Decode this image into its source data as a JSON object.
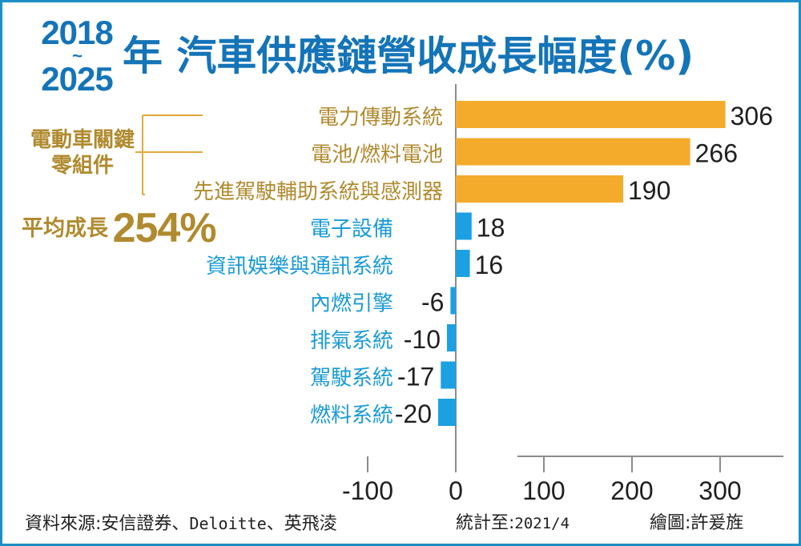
{
  "title": {
    "year_start": "2018",
    "year_sep": "~",
    "year_end": "2025",
    "main": "年 汽車供應鏈營收成長幅度(%)"
  },
  "group": {
    "label": "電動車關鍵零組件",
    "color": "#b08a2e"
  },
  "average": {
    "label": "平均成長",
    "value": "254%"
  },
  "chart_data": {
    "type": "bar",
    "orientation": "horizontal",
    "categories": [
      "電力傳動系統",
      "電池/燃料電池",
      "先進駕駛輔助系統與感測器",
      "電子設備",
      "資訊娛樂與通訊系統",
      "內燃引擎",
      "排氣系統",
      "駕駛系統",
      "燃料系統"
    ],
    "values": [
      306,
      266,
      190,
      18,
      16,
      -6,
      -10,
      -17,
      -20
    ],
    "value_labels": [
      "306",
      "266",
      "190",
      "18",
      "16",
      "-6",
      "-10",
      "-17",
      "-20"
    ],
    "highlight": [
      true,
      true,
      true,
      false,
      false,
      false,
      false,
      false,
      false
    ],
    "xlim": [
      -150,
      385
    ],
    "xticks": [
      -100,
      0,
      100,
      200,
      300
    ],
    "xtick_labels": [
      "-100",
      "0",
      "100",
      "200",
      "300"
    ],
    "colors": {
      "highlight": "#f4ab2c",
      "normal": "#1ba1e2",
      "highlight_text": "#b08a2e",
      "normal_text": "#1a9ad6",
      "axis": "#8c8c8c"
    }
  },
  "footer": {
    "source_label": "資料來源:安信證券、",
    "source_en": "Deloitte",
    "source_rest": "、英飛淩",
    "stat_label": "統計至:",
    "stat_date": "2021/4",
    "credit": "繪圖:許爰旌"
  }
}
